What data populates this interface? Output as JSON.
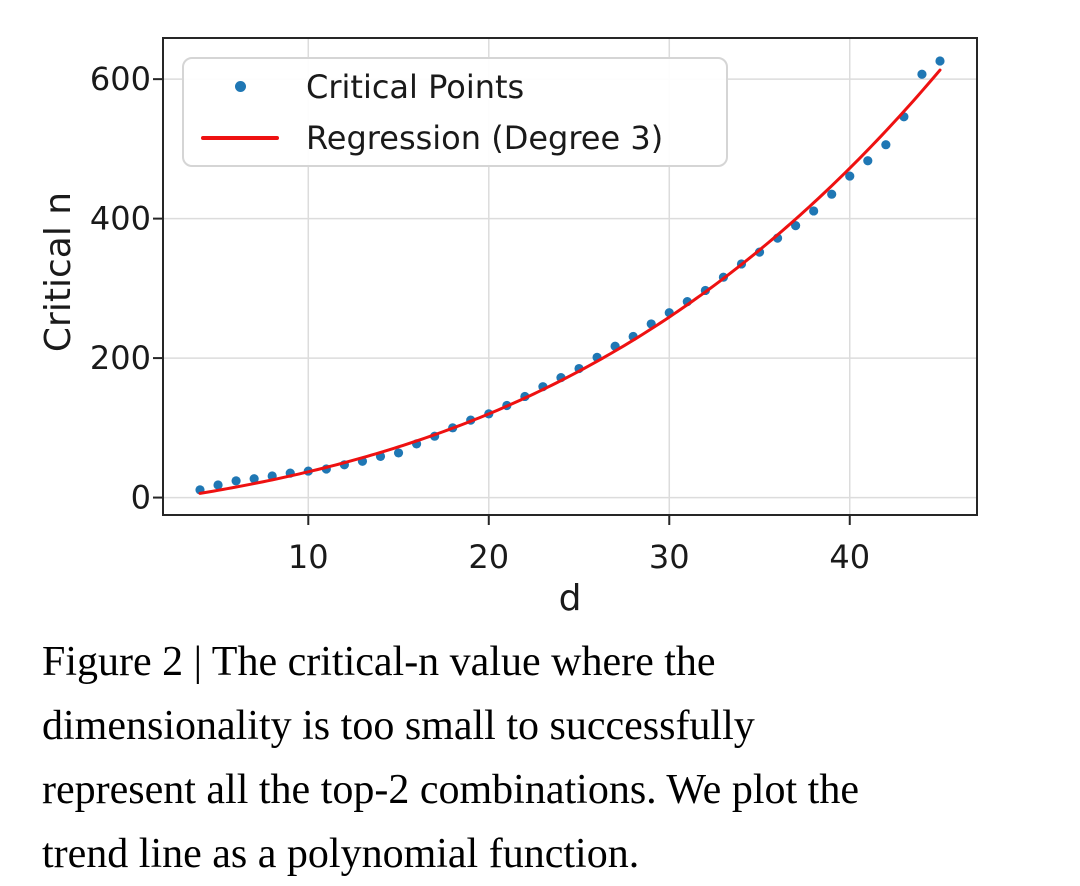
{
  "figure": {
    "caption_lines": [
      "Figure 2 | The critical-n value where the",
      "dimensionality is too small to successfully",
      "represent all the top-2 combinations. We plot the",
      "trend line as a polynomial function."
    ]
  },
  "chart_data": {
    "type": "scatter",
    "title": "",
    "xlabel": "d",
    "ylabel": "Critical n",
    "xlim": [
      1.95,
      47.05
    ],
    "ylim": [
      -25,
      659
    ],
    "xticks": [
      10,
      20,
      30,
      40
    ],
    "yticks": [
      0,
      200,
      400,
      600
    ],
    "grid": true,
    "legend_position": "upper left",
    "colors": {
      "scatter": "#1f77b4",
      "line": "#ee1111",
      "grid": "#dcdcdc",
      "spine": "#262626",
      "text": "#1a1a1a"
    },
    "series": [
      {
        "name": "Critical Points",
        "kind": "scatter",
        "color": "#1f77b4",
        "x": [
          4,
          5,
          6,
          7,
          8,
          9,
          10,
          11,
          12,
          13,
          14,
          15,
          16,
          17,
          18,
          19,
          20,
          21,
          22,
          23,
          24,
          25,
          26,
          27,
          28,
          29,
          30,
          31,
          32,
          33,
          34,
          35,
          36,
          37,
          38,
          39,
          40,
          41,
          42,
          43,
          44,
          45
        ],
        "y": [
          11,
          18,
          24,
          27,
          31,
          35,
          38,
          41,
          47,
          52,
          59,
          64,
          77,
          88,
          100,
          111,
          120,
          132,
          145,
          159,
          172,
          185,
          201,
          217,
          231,
          249,
          265,
          281,
          297,
          316,
          335,
          352,
          372,
          390,
          411,
          435,
          461,
          483,
          506,
          546,
          607,
          626
        ]
      },
      {
        "name": "Regression (Degree 3)",
        "kind": "line",
        "color": "#ee1111",
        "poly_coeffs": [
          0.003166,
          0.08875,
          3.425,
          -9.32
        ],
        "x_range": [
          4,
          45
        ]
      }
    ]
  }
}
